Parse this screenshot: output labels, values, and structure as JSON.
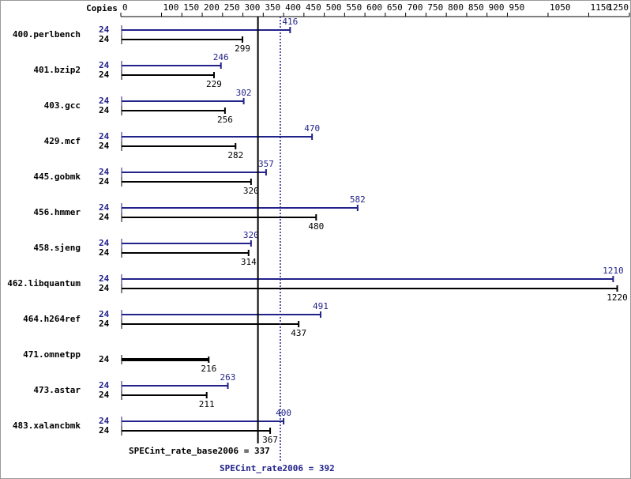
{
  "chart_data": {
    "type": "bar",
    "orientation": "horizontal",
    "copies_label": "Copies",
    "categories": [
      "400.perlbench",
      "401.bzip2",
      "403.gcc",
      "429.mcf",
      "445.gobmk",
      "456.hmmer",
      "458.sjeng",
      "462.libquantum",
      "464.h264ref",
      "471.omnetpp",
      "473.astar",
      "483.xalancbmk"
    ],
    "series": [
      {
        "color": "#22228b",
        "copies": [
          24,
          24,
          24,
          24,
          24,
          24,
          24,
          24,
          24,
          null,
          24,
          24
        ],
        "values": [
          416,
          246,
          302,
          470,
          357,
          582,
          320,
          1210,
          491,
          null,
          263,
          400
        ]
      },
      {
        "color": "#000000",
        "copies": [
          24,
          24,
          24,
          24,
          24,
          24,
          24,
          24,
          24,
          24,
          24,
          24
        ],
        "values": [
          299,
          229,
          256,
          282,
          320,
          480,
          314,
          1220,
          437,
          216,
          211,
          367
        ]
      }
    ],
    "xlim": [
      0,
      1250
    ],
    "xticks": [
      0,
      100,
      150,
      200,
      250,
      300,
      350,
      400,
      450,
      500,
      550,
      600,
      650,
      700,
      750,
      800,
      850,
      900,
      950,
      1050,
      1150,
      1250
    ],
    "reference_lines": [
      {
        "label": "SPECint_rate_base2006 = 337",
        "value": 337,
        "color": "#000000",
        "style": "solid"
      },
      {
        "label": "SPECint_rate2006 = 392",
        "value": 392,
        "color": "#22228b",
        "style": "dotted"
      }
    ]
  }
}
